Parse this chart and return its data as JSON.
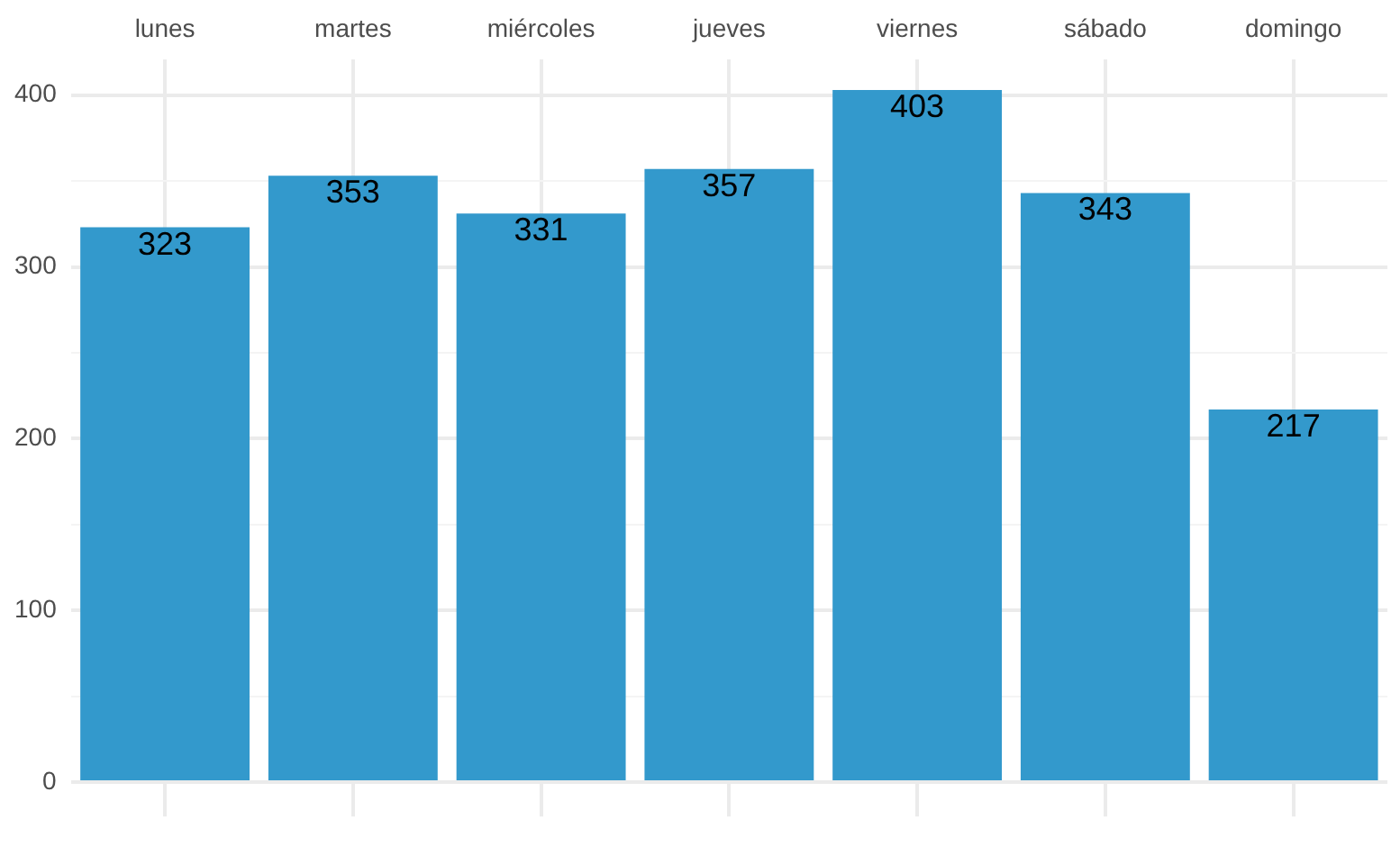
{
  "chart_data": {
    "type": "bar",
    "categories": [
      "lunes",
      "martes",
      "miércoles",
      "jueves",
      "viernes",
      "sábado",
      "domingo"
    ],
    "values": [
      323,
      353,
      331,
      357,
      403,
      343,
      217
    ],
    "color": "#3399cc",
    "ylim": [
      -20,
      421
    ],
    "yticks": [
      0,
      {
        "value": 50,
        "label": null
      },
      100,
      {
        "value": 150,
        "label": null
      },
      200,
      {
        "value": 250,
        "label": null
      },
      300,
      {
        "value": 350,
        "label": null
      },
      400
    ],
    "grid": true,
    "data_labels": true
  }
}
